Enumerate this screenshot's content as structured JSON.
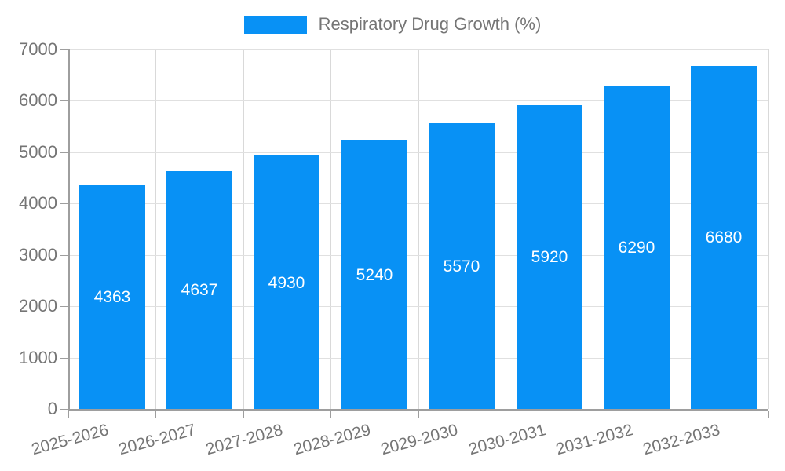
{
  "chart_data": {
    "type": "bar",
    "title": "Respiratory Drug Growth (%)",
    "categories": [
      "2025-2026",
      "2026-2027",
      "2027-2028",
      "2028-2029",
      "2029-2030",
      "2030-2031",
      "2031-2032",
      "2032-2033"
    ],
    "values": [
      4363,
      4637,
      4930,
      5240,
      5570,
      5920,
      6290,
      6680
    ],
    "xlabel": "",
    "ylabel": "",
    "ylim": [
      0,
      7000
    ],
    "yticks": [
      0,
      1000,
      2000,
      3000,
      4000,
      5000,
      6000,
      7000
    ],
    "legend_position": "top",
    "grid": true,
    "value_labels": "inside-center",
    "colors": {
      "bar": "#0891f5",
      "grid_horizontal": "#e0e0e0",
      "grid_vertical": "#d9d9d9",
      "axis": "#9e9e9e",
      "tick_text": "#757575",
      "value_label": "#ffffff",
      "background": "#ffffff"
    }
  }
}
